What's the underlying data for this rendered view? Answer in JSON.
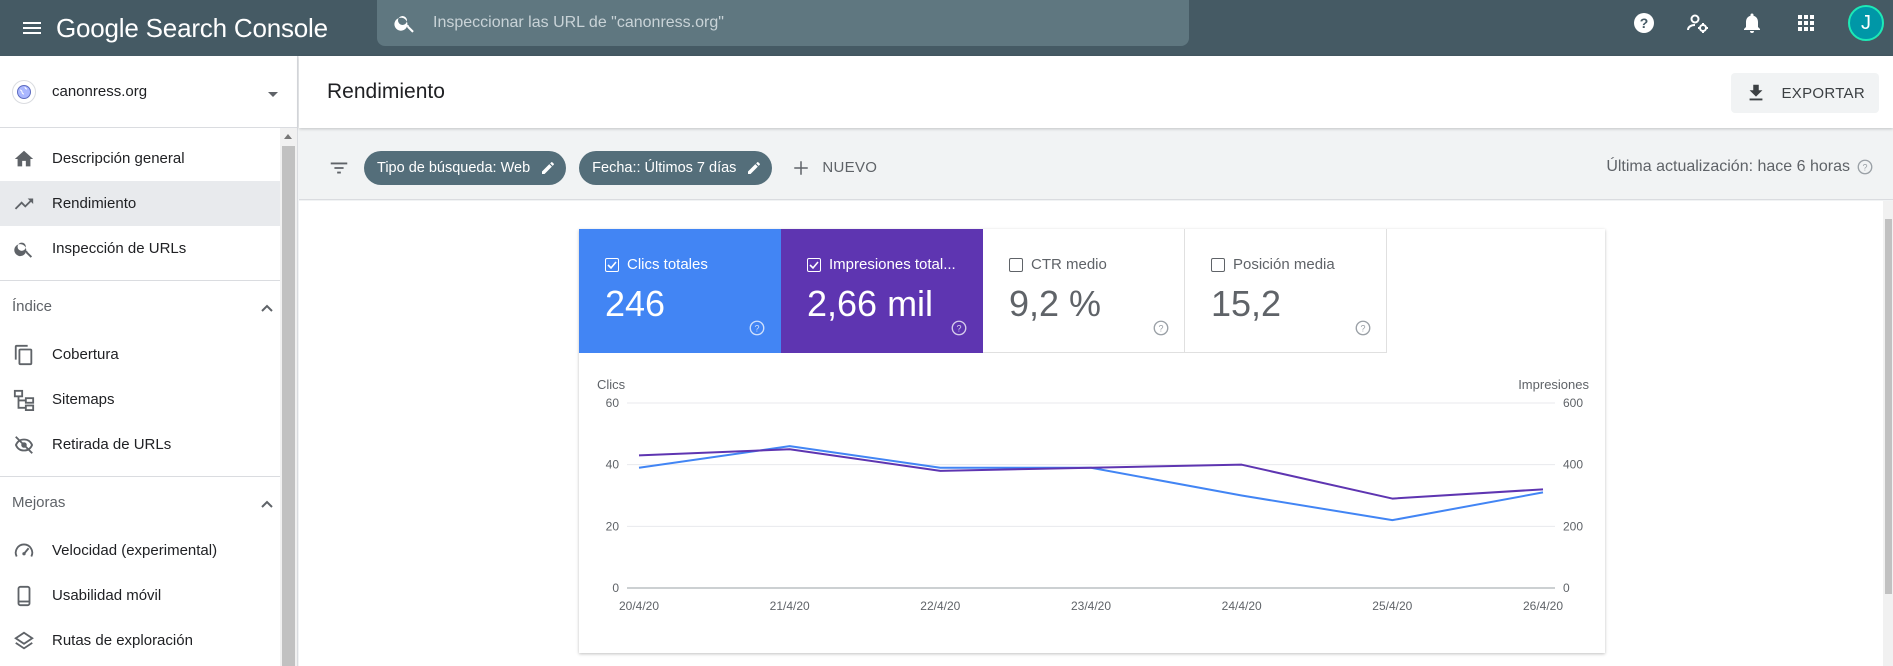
{
  "app": {
    "logo": "Google Search Console"
  },
  "search": {
    "placeholder": "Inspeccionar las URL de \"canonress.org\""
  },
  "user": {
    "initial": "J"
  },
  "property": {
    "name": "canonress.org"
  },
  "sidebar": {
    "items": [
      {
        "label": "Descripción general",
        "icon": "home-icon"
      },
      {
        "label": "Rendimiento",
        "icon": "trending-up-icon",
        "active": true
      },
      {
        "label": "Inspección de URLs",
        "icon": "search-icon"
      }
    ],
    "sections": [
      {
        "title": "Índice",
        "items": [
          {
            "label": "Cobertura",
            "icon": "copy-icon"
          },
          {
            "label": "Sitemaps",
            "icon": "sitemap-icon"
          },
          {
            "label": "Retirada de URLs",
            "icon": "visibility-off-icon"
          }
        ]
      },
      {
        "title": "Mejoras",
        "items": [
          {
            "label": "Velocidad (experimental)",
            "icon": "speed-icon"
          },
          {
            "label": "Usabilidad móvil",
            "icon": "smartphone-icon"
          },
          {
            "label": "Rutas de exploración",
            "icon": "layers-icon"
          }
        ]
      }
    ]
  },
  "page": {
    "title": "Rendimiento",
    "export_label": "EXPORTAR"
  },
  "filters": {
    "chips": [
      "Tipo de búsqueda: Web",
      "Fecha:: Últimos 7 días"
    ],
    "new_label": "NUEVO",
    "last_update": "Última actualización: hace 6 horas"
  },
  "metrics": [
    {
      "label": "Clics totales",
      "value": "246",
      "checked": true,
      "color": "#4285f4"
    },
    {
      "label": "Impresiones total...",
      "value": "2,66 mil",
      "checked": true,
      "color": "#5e35b1"
    },
    {
      "label": "CTR medio",
      "value": "9,2 %",
      "checked": false
    },
    {
      "label": "Posición media",
      "value": "15,2",
      "checked": false
    }
  ],
  "chart_data": {
    "type": "line",
    "categories": [
      "20/4/20",
      "21/4/20",
      "22/4/20",
      "23/4/20",
      "24/4/20",
      "25/4/20",
      "26/4/20"
    ],
    "ylabel": "Clics",
    "y2label": "Impresiones",
    "ylim": [
      0,
      60
    ],
    "y2lim": [
      0,
      600
    ],
    "yticks": [
      "0",
      "20",
      "40",
      "60"
    ],
    "y2ticks": [
      "0",
      "200",
      "400",
      "600"
    ],
    "series": [
      {
        "name": "Clics",
        "axis": "left",
        "color": "#4285f4",
        "values": [
          39,
          46,
          39,
          39,
          30,
          22,
          31
        ]
      },
      {
        "name": "Impresiones",
        "axis": "right",
        "color": "#5e35b1",
        "values": [
          430,
          450,
          380,
          390,
          400,
          290,
          320
        ]
      }
    ],
    "grid": true
  }
}
